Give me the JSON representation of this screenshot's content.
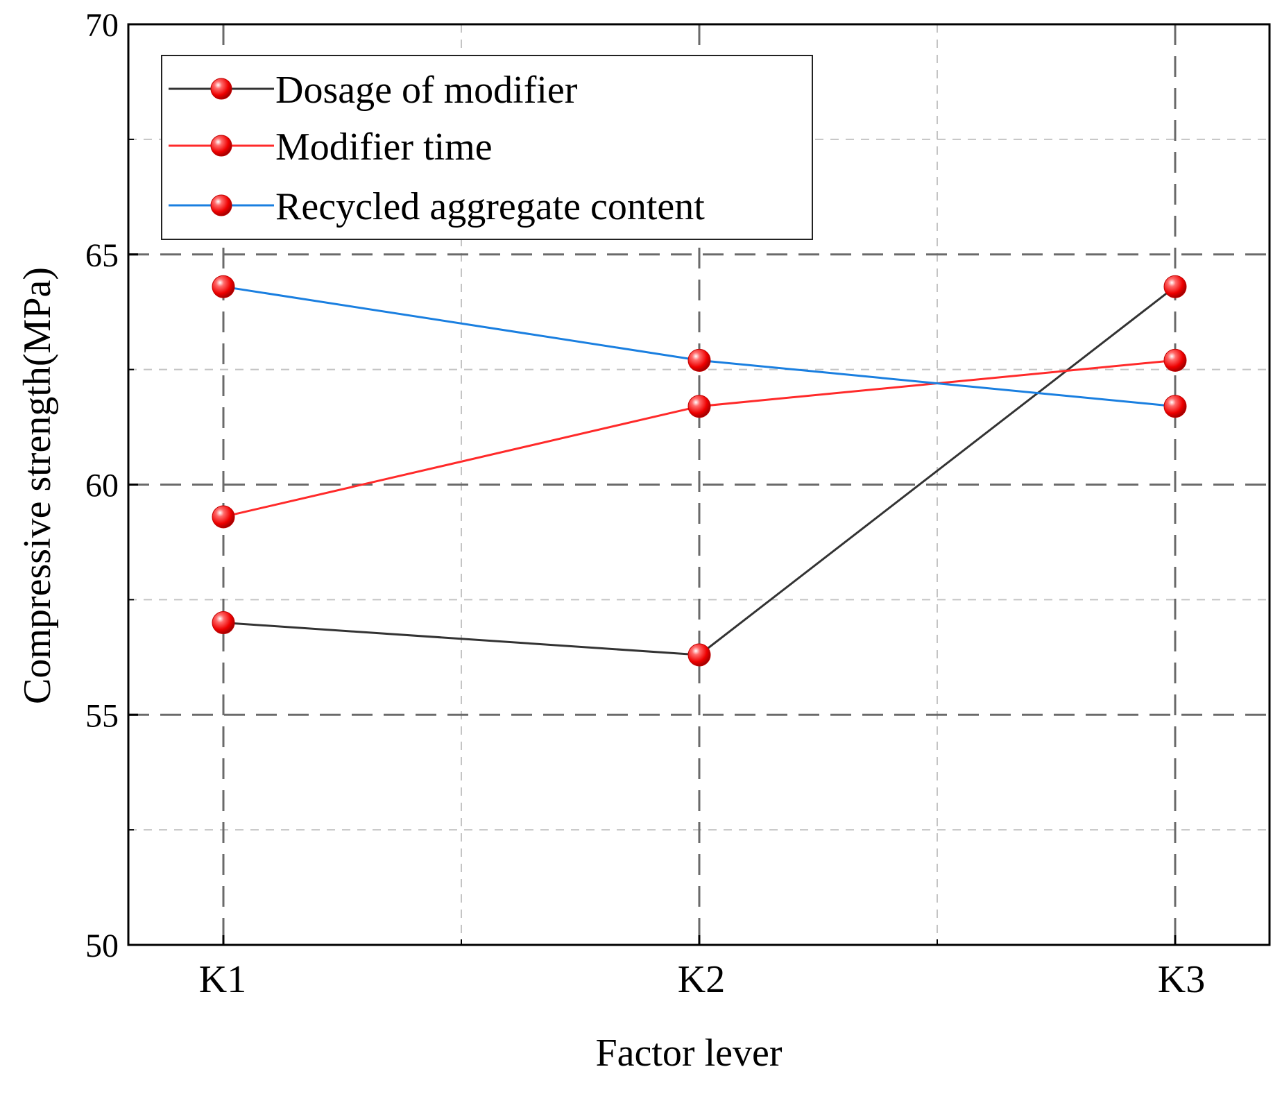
{
  "chart_data": {
    "type": "line",
    "title": "",
    "xlabel": "Factor lever",
    "ylabel": "Compressive strength(MPa)",
    "categories": [
      "K1",
      "K2",
      "K3"
    ],
    "ylim": [
      50,
      70
    ],
    "yticks": [
      50,
      55,
      60,
      65,
      70
    ],
    "grid": true,
    "legend_position": "top-left",
    "marker_color": "#ff0000",
    "series": [
      {
        "name": "Dosage of modifier",
        "color": "#333333",
        "values": [
          57.0,
          56.3,
          64.3
        ]
      },
      {
        "name": "Modifier time",
        "color": "#ff2a2a",
        "values": [
          59.3,
          61.7,
          62.7
        ]
      },
      {
        "name": "Recycled aggregate content",
        "color": "#1a7fe0",
        "values": [
          64.3,
          62.7,
          61.7
        ]
      }
    ]
  }
}
